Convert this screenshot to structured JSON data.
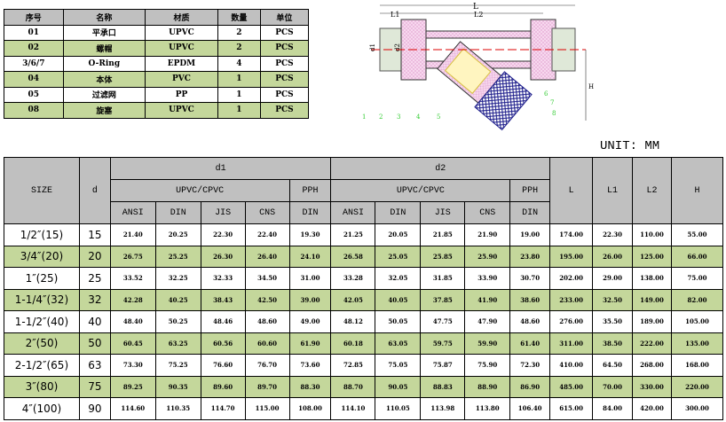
{
  "parts_table": {
    "headers": [
      "序号",
      "名称",
      "材质",
      "数量",
      "单位"
    ],
    "rows": [
      [
        "01",
        "平承口",
        "UPVC",
        "2",
        "PCS"
      ],
      [
        "02",
        "螺帽",
        "UPVC",
        "2",
        "PCS"
      ],
      [
        "3/6/7",
        "O-Ring",
        "EPDM",
        "4",
        "PCS"
      ],
      [
        "04",
        "本体",
        "PVC",
        "1",
        "PCS"
      ],
      [
        "05",
        "过滤网",
        "PP",
        "1",
        "PCS"
      ],
      [
        "08",
        "旋塞",
        "UPVC",
        "1",
        "PCS"
      ]
    ]
  },
  "diagram": {
    "dims": [
      "L",
      "L1",
      "L2",
      "d1",
      "d2",
      "H"
    ],
    "callouts": [
      "1",
      "2",
      "3",
      "4",
      "5",
      "6",
      "7",
      "8"
    ]
  },
  "unit": "UNIT: MM",
  "spec_table": {
    "h_size": "SIZE",
    "h_d": "d",
    "h_d1": "d1",
    "h_d2": "d2",
    "h_upvc": "UPVC/CPVC",
    "h_pph": "PPH",
    "h_L": "L",
    "h_L1": "L1",
    "h_L2": "L2",
    "h_H": "H",
    "std": [
      "ANSI",
      "DIN",
      "JIS",
      "CNS",
      "DIN"
    ],
    "rows": [
      [
        "1/2″(15)",
        "15",
        "21.40",
        "20.25",
        "22.30",
        "22.40",
        "19.30",
        "21.25",
        "20.05",
        "21.85",
        "21.90",
        "19.00",
        "174.00",
        "22.30",
        "110.00",
        "55.00"
      ],
      [
        "3/4″(20)",
        "20",
        "26.75",
        "25.25",
        "26.30",
        "26.40",
        "24.10",
        "26.58",
        "25.05",
        "25.85",
        "25.90",
        "23.80",
        "195.00",
        "26.00",
        "125.00",
        "66.00"
      ],
      [
        "1″(25)",
        "25",
        "33.52",
        "32.25",
        "32.33",
        "34.50",
        "31.00",
        "33.28",
        "32.05",
        "31.85",
        "33.90",
        "30.70",
        "202.00",
        "29.00",
        "138.00",
        "75.00"
      ],
      [
        "1-1/4″(32)",
        "32",
        "42.28",
        "40.25",
        "38.43",
        "42.50",
        "39.00",
        "42.05",
        "40.05",
        "37.85",
        "41.90",
        "38.60",
        "233.00",
        "32.50",
        "149.00",
        "82.00"
      ],
      [
        "1-1/2″(40)",
        "40",
        "48.40",
        "50.25",
        "48.46",
        "48.60",
        "49.00",
        "48.12",
        "50.05",
        "47.75",
        "47.90",
        "48.60",
        "276.00",
        "35.50",
        "189.00",
        "105.00"
      ],
      [
        "2″(50)",
        "50",
        "60.45",
        "63.25",
        "60.56",
        "60.60",
        "61.90",
        "60.18",
        "63.05",
        "59.75",
        "59.90",
        "61.40",
        "311.00",
        "38.50",
        "222.00",
        "135.00"
      ],
      [
        "2-1/2″(65)",
        "63",
        "73.30",
        "75.25",
        "76.60",
        "76.70",
        "73.60",
        "72.85",
        "75.05",
        "75.87",
        "75.90",
        "72.30",
        "410.00",
        "64.50",
        "268.00",
        "168.00"
      ],
      [
        "3″(80)",
        "75",
        "89.25",
        "90.35",
        "89.60",
        "89.70",
        "88.30",
        "88.70",
        "90.05",
        "88.83",
        "88.90",
        "86.90",
        "485.00",
        "70.00",
        "330.00",
        "220.00"
      ],
      [
        "4″(100)",
        "90",
        "114.60",
        "110.35",
        "114.70",
        "115.00",
        "108.00",
        "114.10",
        "110.05",
        "113.98",
        "113.80",
        "106.40",
        "615.00",
        "84.00",
        "420.00",
        "300.00"
      ]
    ]
  }
}
